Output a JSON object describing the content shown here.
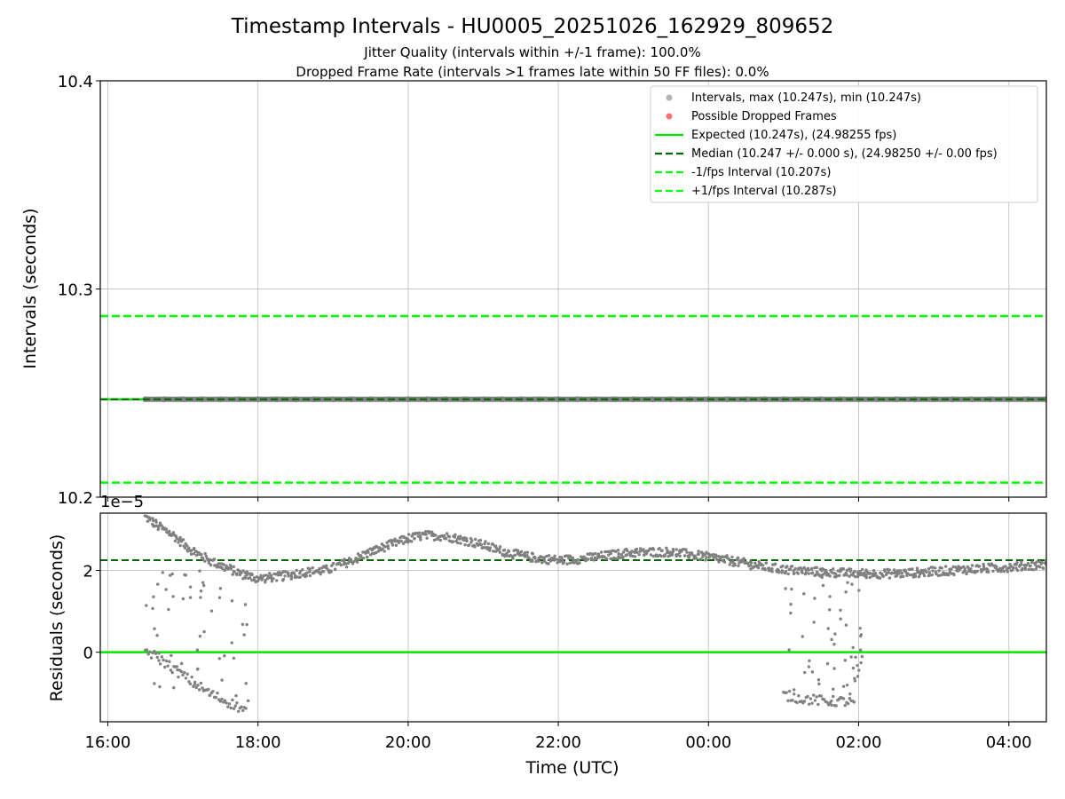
{
  "title": "Timestamp Intervals - HU0005_20251026_162929_809652",
  "subtitle_1": "Jitter Quality (intervals within +/-1 frame): 100.0%",
  "subtitle_2": "Dropped Frame Rate (intervals >1 frames late within 50 FF files): 0.0%",
  "colors": {
    "points": "#808080",
    "dropped": "#ff4c4c",
    "expected": "#00e600",
    "median": "#006400",
    "bounds": "#00ff00",
    "grid": "#c8c8c8"
  },
  "legend": {
    "placement": "top-right",
    "intervals": "Intervals, max (10.247s), min (10.247s)",
    "dropped": "Possible Dropped Frames",
    "expected": "Expected (10.247s), (24.98255 fps)",
    "median": "Median (10.247 +/- 0.000 s), (24.98250 +/- 0.00 fps)",
    "minus": "-1/fps Interval (10.207s)",
    "plus": "+1/fps Interval (10.287s)"
  },
  "chart_data": [
    {
      "type": "scatter",
      "panel": "intervals",
      "ylabel": "Intervals (seconds)",
      "xlabel": "",
      "ylim": [
        10.2,
        10.4
      ],
      "yticks": [
        "10.2",
        "10.3",
        "10.4"
      ],
      "xlim_hours": [
        15.9,
        28.5
      ],
      "grid": true,
      "series": [
        {
          "name": "Intervals, max (10.247s), min (10.247s)",
          "x_range_hours": [
            16.5,
            28.5
          ],
          "y": 10.247
        },
        {
          "name": "Expected (10.247s), (24.98255 fps)",
          "y": 10.247
        },
        {
          "name": "Median (10.247 +/- 0.000 s), (24.98250 +/- 0.00 fps)",
          "y": 10.247
        },
        {
          "name": "-1/fps Interval (10.207s)",
          "y": 10.207
        },
        {
          "name": "+1/fps Interval (10.287s)",
          "y": 10.287
        }
      ]
    },
    {
      "type": "scatter",
      "panel": "residuals",
      "ylabel": "Residuals (seconds)",
      "xlabel": "Time (UTC)",
      "offset_label": "1e−5",
      "y_scale": 1e-05,
      "ylim": [
        -1.7,
        3.4
      ],
      "yticks": [
        "0",
        "2"
      ],
      "xticks": [
        "16:00",
        "18:00",
        "20:00",
        "22:00",
        "00:00",
        "02:00",
        "04:00"
      ],
      "xtick_hours": [
        16,
        18,
        20,
        22,
        24,
        26,
        28
      ],
      "grid": true,
      "expected_residual": 0,
      "median_residual": 2.25,
      "trend": {
        "x_hours": [
          16.5,
          16.7,
          16.85,
          17.0,
          17.2,
          17.4,
          17.6,
          17.8,
          18.0,
          18.3,
          18.6,
          18.9,
          19.2,
          19.5,
          19.8,
          20.0,
          20.2,
          20.4,
          20.6,
          20.8,
          21.0,
          21.2,
          21.4,
          21.7,
          22.0,
          22.3,
          22.6,
          22.9,
          23.2,
          23.5,
          23.8,
          24.1,
          24.4,
          24.7,
          25.0,
          25.3,
          25.6,
          25.9,
          26.2,
          26.5,
          26.8,
          27.1,
          27.4,
          27.7,
          28.0,
          28.3,
          28.5
        ],
        "y": [
          3.3,
          3.05,
          2.9,
          2.65,
          2.4,
          2.2,
          2.05,
          1.9,
          1.8,
          1.85,
          1.95,
          2.0,
          2.2,
          2.45,
          2.65,
          2.78,
          2.85,
          2.85,
          2.8,
          2.72,
          2.62,
          2.5,
          2.4,
          2.3,
          2.25,
          2.28,
          2.35,
          2.42,
          2.45,
          2.45,
          2.38,
          2.3,
          2.2,
          2.1,
          2.02,
          1.98,
          1.95,
          1.93,
          1.92,
          1.92,
          1.95,
          1.98,
          2.02,
          2.05,
          2.08,
          2.12,
          2.15
        ]
      },
      "low_branch_segments": [
        {
          "x_hours": [
            16.5,
            16.8,
            17.1,
            17.4,
            17.7,
            17.85
          ],
          "y": [
            0.05,
            -0.3,
            -0.7,
            -1.05,
            -1.3,
            -1.45
          ]
        },
        {
          "x_hours": [
            25.0,
            25.3,
            25.6,
            25.8,
            25.95
          ],
          "y": [
            -1.05,
            -1.15,
            -1.2,
            -1.2,
            -1.25
          ]
        }
      ],
      "scatter_zones_hours": [
        [
          16.5,
          17.9
        ],
        [
          25.0,
          26.05
        ]
      ]
    }
  ]
}
